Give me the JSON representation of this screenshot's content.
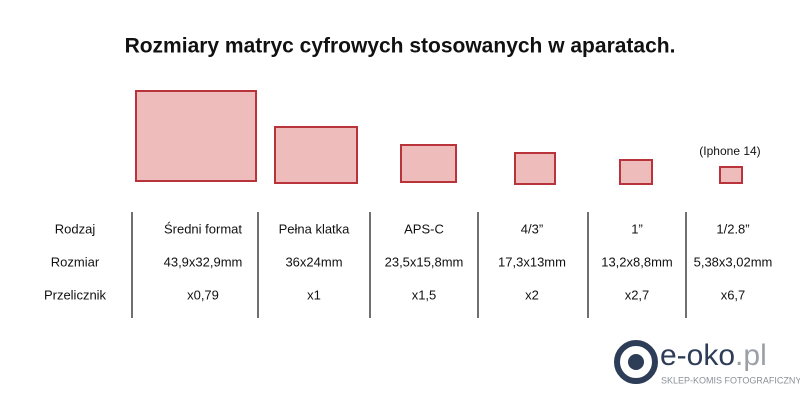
{
  "title": "Rozmiary matryc cyfrowych stosowanych w aparatach.",
  "note": "(Iphone 14)",
  "table": {
    "rows": [
      [
        "Rodzaj",
        "Średni format",
        "Pełna klatka",
        "APS-C",
        "4/3”",
        "1”",
        "1/2.8”"
      ],
      [
        "Rozmiar",
        "43,9x32,9mm",
        "36x24mm",
        "23,5x15,8mm",
        "17,3x13mm",
        "13,2x8,8mm",
        "5,38x3,02mm"
      ],
      [
        "Przelicznik",
        "x0,79",
        "x1",
        "x1,5",
        "x2",
        "x2,7",
        "x6,7"
      ]
    ]
  },
  "logo": {
    "name": "e-oko",
    "suffix": ".pl",
    "tagline": "SKLEP-KOMIS FOTOGRAFICZNY"
  }
}
